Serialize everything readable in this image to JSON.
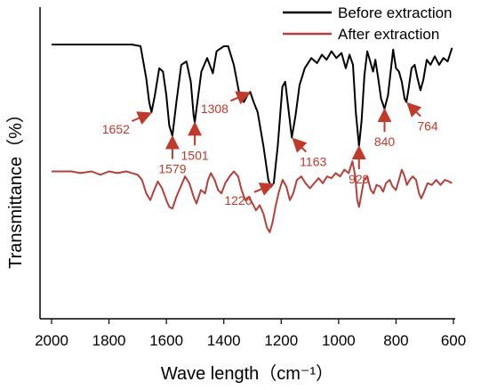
{
  "chart_data": {
    "type": "line",
    "title": "",
    "xlabel": "Wave length（cm⁻¹）",
    "ylabel": "Transmittance（%）",
    "xlim": [
      2000,
      600
    ],
    "x_ticks": [
      2000,
      1800,
      1600,
      1400,
      1200,
      1000,
      800,
      600
    ],
    "grid": false,
    "legend_position": "top-right",
    "series": [
      {
        "name": "Before extraction",
        "color": "#000000",
        "points": [
          [
            2000,
            100
          ],
          [
            1860,
            100
          ],
          [
            1720,
            100
          ],
          [
            1690,
            99
          ],
          [
            1670,
            80
          ],
          [
            1660,
            66
          ],
          [
            1652,
            60
          ],
          [
            1640,
            70
          ],
          [
            1625,
            86
          ],
          [
            1612,
            84
          ],
          [
            1600,
            70
          ],
          [
            1590,
            52
          ],
          [
            1579,
            46
          ],
          [
            1565,
            66
          ],
          [
            1548,
            88
          ],
          [
            1530,
            90
          ],
          [
            1515,
            78
          ],
          [
            1505,
            58
          ],
          [
            1501,
            54
          ],
          [
            1492,
            66
          ],
          [
            1478,
            84
          ],
          [
            1458,
            92
          ],
          [
            1438,
            83
          ],
          [
            1425,
            96
          ],
          [
            1400,
            99
          ],
          [
            1385,
            99
          ],
          [
            1365,
            88
          ],
          [
            1345,
            70
          ],
          [
            1330,
            66
          ],
          [
            1318,
            70
          ],
          [
            1308,
            72
          ],
          [
            1296,
            66
          ],
          [
            1282,
            60
          ],
          [
            1262,
            40
          ],
          [
            1245,
            20
          ],
          [
            1235,
            16
          ],
          [
            1226,
            18
          ],
          [
            1212,
            40
          ],
          [
            1196,
            75
          ],
          [
            1186,
            78
          ],
          [
            1175,
            62
          ],
          [
            1163,
            45
          ],
          [
            1150,
            58
          ],
          [
            1136,
            76
          ],
          [
            1118,
            86
          ],
          [
            1095,
            92
          ],
          [
            1075,
            89
          ],
          [
            1058,
            94
          ],
          [
            1042,
            91
          ],
          [
            1025,
            96
          ],
          [
            1008,
            92
          ],
          [
            990,
            95
          ],
          [
            975,
            86
          ],
          [
            962,
            94
          ],
          [
            950,
            88
          ],
          [
            940,
            60
          ],
          [
            929,
            40
          ],
          [
            920,
            55
          ],
          [
            910,
            82
          ],
          [
            900,
            96
          ],
          [
            890,
            90
          ],
          [
            880,
            84
          ],
          [
            872,
            91
          ],
          [
            862,
            80
          ],
          [
            852,
            68
          ],
          [
            840,
            62
          ],
          [
            828,
            70
          ],
          [
            818,
            85
          ],
          [
            810,
            97
          ],
          [
            800,
            86
          ],
          [
            790,
            84
          ],
          [
            780,
            78
          ],
          [
            770,
            68
          ],
          [
            764,
            66
          ],
          [
            756,
            74
          ],
          [
            746,
            86
          ],
          [
            735,
            88
          ],
          [
            725,
            80
          ],
          [
            715,
            73
          ],
          [
            705,
            79
          ],
          [
            693,
            91
          ],
          [
            680,
            88
          ],
          [
            665,
            93
          ],
          [
            650,
            88
          ],
          [
            635,
            92
          ],
          [
            620,
            90
          ],
          [
            605,
            98
          ]
        ]
      },
      {
        "name": "After extraction",
        "color": "#b5403a",
        "points": [
          [
            2000,
            25
          ],
          [
            1930,
            25
          ],
          [
            1900,
            24
          ],
          [
            1860,
            25
          ],
          [
            1830,
            23
          ],
          [
            1800,
            25
          ],
          [
            1770,
            24
          ],
          [
            1740,
            25
          ],
          [
            1720,
            24
          ],
          [
            1700,
            23
          ],
          [
            1685,
            20
          ],
          [
            1670,
            12
          ],
          [
            1656,
            8
          ],
          [
            1645,
            13
          ],
          [
            1630,
            19
          ],
          [
            1615,
            15
          ],
          [
            1600,
            8
          ],
          [
            1590,
            4
          ],
          [
            1579,
            3
          ],
          [
            1565,
            10
          ],
          [
            1550,
            16
          ],
          [
            1535,
            22
          ],
          [
            1520,
            18
          ],
          [
            1505,
            10
          ],
          [
            1495,
            6
          ],
          [
            1480,
            14
          ],
          [
            1465,
            12
          ],
          [
            1455,
            20
          ],
          [
            1445,
            24
          ],
          [
            1432,
            20
          ],
          [
            1420,
            14
          ],
          [
            1408,
            12
          ],
          [
            1395,
            18
          ],
          [
            1380,
            22
          ],
          [
            1365,
            25
          ],
          [
            1350,
            22
          ],
          [
            1338,
            14
          ],
          [
            1325,
            8
          ],
          [
            1312,
            10
          ],
          [
            1300,
            6
          ],
          [
            1288,
            2
          ],
          [
            1275,
            5
          ],
          [
            1262,
            0
          ],
          [
            1250,
            -8
          ],
          [
            1240,
            -11
          ],
          [
            1230,
            -5
          ],
          [
            1220,
            4
          ],
          [
            1208,
            13
          ],
          [
            1195,
            20
          ],
          [
            1182,
            16
          ],
          [
            1170,
            8
          ],
          [
            1158,
            12
          ],
          [
            1145,
            20
          ],
          [
            1130,
            22
          ],
          [
            1115,
            18
          ],
          [
            1100,
            15
          ],
          [
            1085,
            18
          ],
          [
            1070,
            21
          ],
          [
            1055,
            18
          ],
          [
            1040,
            22
          ],
          [
            1025,
            21
          ],
          [
            1010,
            24
          ],
          [
            995,
            22
          ],
          [
            980,
            26
          ],
          [
            965,
            24
          ],
          [
            952,
            31
          ],
          [
            942,
            22
          ],
          [
            935,
            8
          ],
          [
            929,
            4
          ],
          [
            922,
            10
          ],
          [
            912,
            20
          ],
          [
            900,
            22
          ],
          [
            888,
            14
          ],
          [
            878,
            12
          ],
          [
            868,
            17
          ],
          [
            855,
            16
          ],
          [
            845,
            13
          ],
          [
            835,
            18
          ],
          [
            822,
            20
          ],
          [
            812,
            16
          ],
          [
            800,
            14
          ],
          [
            790,
            20
          ],
          [
            780,
            26
          ],
          [
            770,
            22
          ],
          [
            762,
            17
          ],
          [
            752,
            20
          ],
          [
            742,
            22
          ],
          [
            730,
            20
          ],
          [
            720,
            12
          ],
          [
            712,
            9
          ],
          [
            702,
            13
          ],
          [
            690,
            18
          ],
          [
            675,
            17
          ],
          [
            660,
            20
          ],
          [
            645,
            17
          ],
          [
            630,
            20
          ],
          [
            615,
            19
          ],
          [
            605,
            18
          ]
        ]
      }
    ],
    "annotations": [
      {
        "label": "1652",
        "x": 1652,
        "y": 60,
        "arrow": "right"
      },
      {
        "label": "1579",
        "x": 1579,
        "y": 46,
        "arrow": "up"
      },
      {
        "label": "1501",
        "x": 1501,
        "y": 54,
        "arrow": "up"
      },
      {
        "label": "1308",
        "x": 1308,
        "y": 72,
        "arrow": "right"
      },
      {
        "label": "1163",
        "x": 1163,
        "y": 45,
        "arrow": "up-left"
      },
      {
        "label": "1226",
        "x": 1226,
        "y": 18,
        "arrow": "right"
      },
      {
        "label": "929",
        "x": 929,
        "y": 40,
        "arrow": "up"
      },
      {
        "label": "840",
        "x": 840,
        "y": 62,
        "arrow": "up"
      },
      {
        "label": "764",
        "x": 764,
        "y": 66,
        "arrow": "up-left"
      }
    ]
  }
}
